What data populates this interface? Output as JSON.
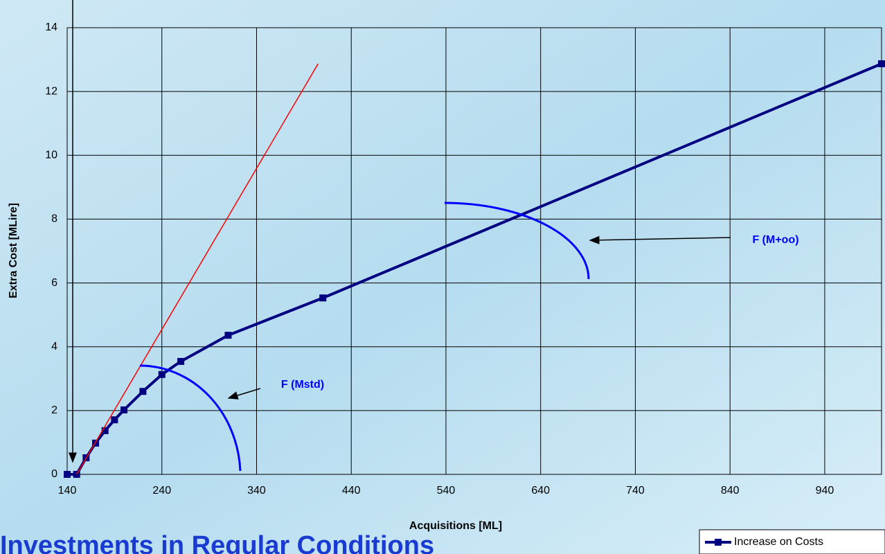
{
  "chart_data": {
    "type": "line",
    "title": "Investments in Regular Conditions",
    "x_label": "Acquisitions [ML]",
    "y_label": "Extra Cost [MLire]",
    "xlim": [
      140,
      1000
    ],
    "xticks": [
      140,
      240,
      340,
      440,
      540,
      640,
      740,
      840,
      940
    ],
    "ylim": [
      0,
      14
    ],
    "yticks": [
      0,
      2,
      4,
      6,
      8,
      10,
      12,
      14
    ],
    "grid": true,
    "legend": "bottom-right",
    "series": [
      {
        "name": "Increase on Costs",
        "color": "#000080",
        "x": [
          140,
          150,
          160,
          170,
          180,
          190,
          200,
          220,
          240,
          260,
          310,
          410,
          1000
        ],
        "values": [
          0,
          0,
          0.52,
          0.98,
          1.37,
          1.71,
          2.02,
          2.6,
          3.13,
          3.54,
          4.36,
          5.53,
          12.87
        ]
      },
      {
        "color": "#ff0000",
        "x": [
          150,
          405
        ],
        "values": [
          0,
          12.87
        ]
      }
    ],
    "annotations": [
      "F (Mstd)",
      "F (M+oo)"
    ]
  }
}
